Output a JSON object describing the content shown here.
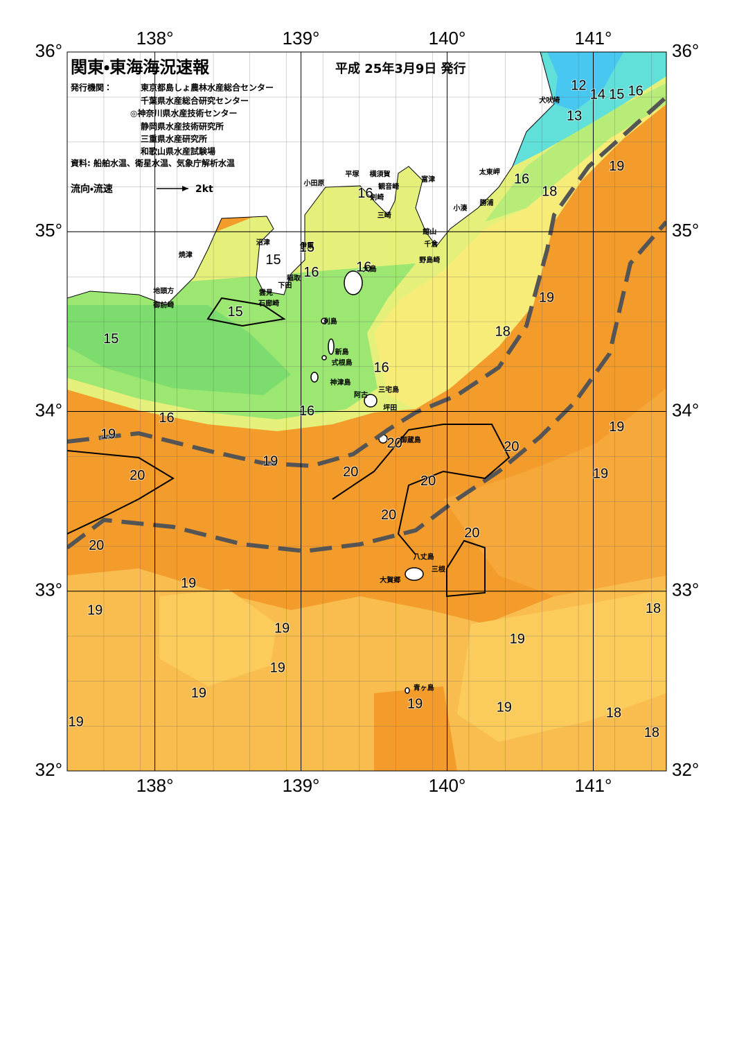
{
  "header": {
    "title": "関東・東海海況速報",
    "date": "平成 25年3月9日 発行",
    "publisher_label": "発行機関：",
    "publishers": [
      "東京都島しょ農林水産総合センター",
      "千葉県水産総合研究センター",
      "◎神奈川県水産技術センター",
      "静岡県水産技術研究所",
      "三重県水産研究所",
      "和歌山県水産試験場"
    ],
    "source": "資料: 船舶水温、衛星水温、気象庁解析水温",
    "legend_label": "流向・流速",
    "legend_scale": "2kt"
  },
  "map": {
    "xlim": [
      137.4,
      141.5
    ],
    "ylim": [
      32,
      36
    ],
    "xticks": [
      {
        "value": 138,
        "label": "138°"
      },
      {
        "value": 139,
        "label": "139°"
      },
      {
        "value": 140,
        "label": "140°"
      },
      {
        "value": 141,
        "label": "141°"
      }
    ],
    "yticks": [
      {
        "value": 32,
        "label": "32°"
      },
      {
        "value": 33,
        "label": "33°"
      },
      {
        "value": 34,
        "label": "34°"
      },
      {
        "value": 35,
        "label": "35°"
      },
      {
        "value": 36,
        "label": "36°"
      }
    ],
    "temperature_labels": [
      {
        "value": 12,
        "lon": 140.9,
        "lat": 35.81
      },
      {
        "value": 14,
        "lon": 141.03,
        "lat": 35.76
      },
      {
        "value": 15,
        "lon": 141.16,
        "lat": 35.76
      },
      {
        "value": 16,
        "lon": 141.29,
        "lat": 35.78
      },
      {
        "value": 13,
        "lon": 140.87,
        "lat": 35.64
      },
      {
        "value": 19,
        "lon": 141.16,
        "lat": 35.36
      },
      {
        "value": 16,
        "lon": 140.51,
        "lat": 35.29
      },
      {
        "value": 18,
        "lon": 140.7,
        "lat": 35.22
      },
      {
        "value": 16,
        "lon": 139.44,
        "lat": 35.21
      },
      {
        "value": 15,
        "lon": 138.81,
        "lat": 34.84
      },
      {
        "value": 16,
        "lon": 139.43,
        "lat": 34.8
      },
      {
        "value": 16,
        "lon": 139.07,
        "lat": 34.77
      },
      {
        "value": 15,
        "lon": 139.04,
        "lat": 34.91
      },
      {
        "value": 15,
        "lon": 138.55,
        "lat": 34.55
      },
      {
        "value": 19,
        "lon": 140.68,
        "lat": 34.63
      },
      {
        "value": 15,
        "lon": 137.7,
        "lat": 34.4
      },
      {
        "value": 18,
        "lon": 140.38,
        "lat": 34.44
      },
      {
        "value": 16,
        "lon": 139.55,
        "lat": 34.24
      },
      {
        "value": 16,
        "lon": 139.04,
        "lat": 34.0
      },
      {
        "value": 16,
        "lon": 138.08,
        "lat": 33.96
      },
      {
        "value": 19,
        "lon": 137.68,
        "lat": 33.87
      },
      {
        "value": 19,
        "lon": 141.16,
        "lat": 33.91
      },
      {
        "value": 20,
        "lon": 139.64,
        "lat": 33.82
      },
      {
        "value": 20,
        "lon": 140.44,
        "lat": 33.8
      },
      {
        "value": 19,
        "lon": 138.79,
        "lat": 33.72
      },
      {
        "value": 20,
        "lon": 139.34,
        "lat": 33.66
      },
      {
        "value": 20,
        "lon": 137.88,
        "lat": 33.64
      },
      {
        "value": 19,
        "lon": 141.05,
        "lat": 33.65
      },
      {
        "value": 20,
        "lon": 139.87,
        "lat": 33.61
      },
      {
        "value": 20,
        "lon": 139.6,
        "lat": 33.42
      },
      {
        "value": 20,
        "lon": 140.17,
        "lat": 33.32
      },
      {
        "value": 20,
        "lon": 137.6,
        "lat": 33.25
      },
      {
        "value": 19,
        "lon": 138.23,
        "lat": 33.04
      },
      {
        "value": 19,
        "lon": 137.59,
        "lat": 32.89
      },
      {
        "value": 18,
        "lon": 141.41,
        "lat": 32.9
      },
      {
        "value": 19,
        "lon": 138.87,
        "lat": 32.79
      },
      {
        "value": 19,
        "lon": 140.48,
        "lat": 32.73
      },
      {
        "value": 19,
        "lon": 138.84,
        "lat": 32.57
      },
      {
        "value": 19,
        "lon": 138.3,
        "lat": 32.43
      },
      {
        "value": 19,
        "lon": 139.78,
        "lat": 32.37
      },
      {
        "value": 19,
        "lon": 140.39,
        "lat": 32.35
      },
      {
        "value": 18,
        "lon": 141.14,
        "lat": 32.32
      },
      {
        "value": 19,
        "lon": 137.46,
        "lat": 32.27
      },
      {
        "value": 18,
        "lon": 141.4,
        "lat": 32.21
      }
    ],
    "place_names": [
      {
        "name": "犬吠埼",
        "lon": 140.7,
        "lat": 35.73
      },
      {
        "name": "太東岬",
        "lon": 140.29,
        "lat": 35.33
      },
      {
        "name": "勝浦",
        "lon": 140.27,
        "lat": 35.16
      },
      {
        "name": "小湊",
        "lon": 140.09,
        "lat": 35.13
      },
      {
        "name": "富津",
        "lon": 139.87,
        "lat": 35.29
      },
      {
        "name": "横須賀",
        "lon": 139.54,
        "lat": 35.32
      },
      {
        "name": "観音崎",
        "lon": 139.6,
        "lat": 35.25
      },
      {
        "name": "平塚",
        "lon": 139.35,
        "lat": 35.32
      },
      {
        "name": "小田原",
        "lon": 139.09,
        "lat": 35.27
      },
      {
        "name": "剣崎",
        "lon": 139.52,
        "lat": 35.19
      },
      {
        "name": "三崎",
        "lon": 139.57,
        "lat": 35.09
      },
      {
        "name": "館山",
        "lon": 139.88,
        "lat": 35.0
      },
      {
        "name": "千倉",
        "lon": 139.89,
        "lat": 34.93
      },
      {
        "name": "野島崎",
        "lon": 139.88,
        "lat": 34.84
      },
      {
        "name": "沼津",
        "lon": 138.74,
        "lat": 34.94
      },
      {
        "name": "焼津",
        "lon": 138.21,
        "lat": 34.87
      },
      {
        "name": "伊東",
        "lon": 139.04,
        "lat": 34.92
      },
      {
        "name": "稲取",
        "lon": 138.95,
        "lat": 34.74
      },
      {
        "name": "下田",
        "lon": 138.89,
        "lat": 34.7
      },
      {
        "name": "雲見",
        "lon": 138.76,
        "lat": 34.66
      },
      {
        "name": "石廊崎",
        "lon": 138.78,
        "lat": 34.6
      },
      {
        "name": "地頭方",
        "lon": 138.06,
        "lat": 34.67
      },
      {
        "name": "御前崎",
        "lon": 138.06,
        "lat": 34.59
      },
      {
        "name": "大島",
        "lon": 139.47,
        "lat": 34.79
      },
      {
        "name": "利島",
        "lon": 139.2,
        "lat": 34.5
      },
      {
        "name": "新島",
        "lon": 139.28,
        "lat": 34.33
      },
      {
        "name": "式根島",
        "lon": 139.28,
        "lat": 34.27
      },
      {
        "name": "神津島",
        "lon": 139.27,
        "lat": 34.16
      },
      {
        "name": "三宅島",
        "lon": 139.6,
        "lat": 34.12
      },
      {
        "name": "阿古",
        "lon": 139.41,
        "lat": 34.09
      },
      {
        "name": "坪田",
        "lon": 139.61,
        "lat": 34.02
      },
      {
        "name": "御蔵島",
        "lon": 139.75,
        "lat": 33.84
      },
      {
        "name": "八丈島",
        "lon": 139.84,
        "lat": 33.19
      },
      {
        "name": "三根",
        "lon": 139.94,
        "lat": 33.12
      },
      {
        "name": "大賀郷",
        "lon": 139.61,
        "lat": 33.06
      },
      {
        "name": "青ヶ島",
        "lon": 139.84,
        "lat": 32.46
      }
    ]
  }
}
